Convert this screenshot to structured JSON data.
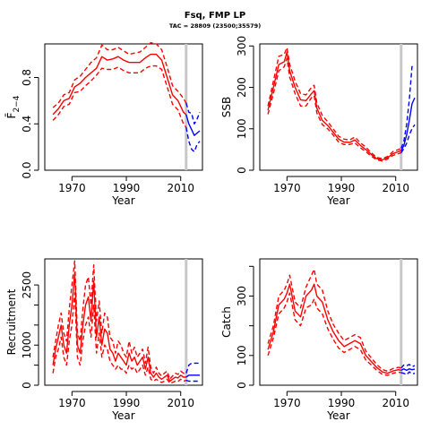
{
  "figure": {
    "title": "Fsq, FMP LP",
    "subtitle": "TAC = 28809 (23500;35579)"
  },
  "colors": {
    "history": "#ff0000",
    "projection": "#0000ff",
    "marker": "#c8c8c8",
    "axes": "#000000"
  },
  "chart_data": [
    {
      "id": "fbar",
      "type": "line",
      "title": "",
      "xlabel": "Year",
      "ylabel": "F̄",
      "ylabel_subscript": "2−4",
      "xlim": [
        1960,
        2018
      ],
      "ylim": [
        0,
        1.09
      ],
      "xticks": [
        1970,
        1990,
        2010
      ],
      "yticks": [
        0.0,
        0.4,
        0.8
      ],
      "ytick_labels": [
        "0.0",
        "0.4",
        "0.8"
      ],
      "vline_year": 2012,
      "hist": {
        "x": [
          1963,
          1965,
          1967,
          1969,
          1971,
          1973,
          1975,
          1977,
          1979,
          1981,
          1983,
          1985,
          1987,
          1989,
          1991,
          1993,
          1995,
          1997,
          1999,
          2001,
          2003,
          2005,
          2007,
          2009,
          2011,
          2012
        ],
        "y": [
          0.48,
          0.53,
          0.6,
          0.62,
          0.72,
          0.75,
          0.8,
          0.84,
          0.88,
          0.98,
          0.95,
          0.96,
          0.98,
          0.95,
          0.93,
          0.93,
          0.93,
          0.97,
          1.0,
          1.0,
          0.95,
          0.8,
          0.65,
          0.6,
          0.5,
          0.48
        ],
        "lo": [
          0.43,
          0.48,
          0.55,
          0.57,
          0.67,
          0.68,
          0.73,
          0.77,
          0.82,
          0.88,
          0.87,
          0.87,
          0.89,
          0.86,
          0.84,
          0.84,
          0.84,
          0.88,
          0.9,
          0.9,
          0.87,
          0.72,
          0.57,
          0.52,
          0.4,
          0.37
        ],
        "hi": [
          0.54,
          0.58,
          0.65,
          0.67,
          0.78,
          0.81,
          0.87,
          0.93,
          0.97,
          1.08,
          1.04,
          1.04,
          1.06,
          1.03,
          1.0,
          1.01,
          1.02,
          1.06,
          1.1,
          1.09,
          1.04,
          0.89,
          0.73,
          0.68,
          0.62,
          0.58
        ]
      },
      "proj": {
        "x": [
          2012,
          2013,
          2014,
          2015,
          2016,
          2017
        ],
        "y": [
          0.48,
          0.4,
          0.35,
          0.3,
          0.32,
          0.34
        ],
        "lo": [
          0.37,
          0.25,
          0.18,
          0.16,
          0.22,
          0.25
        ],
        "hi": [
          0.58,
          0.5,
          0.49,
          0.4,
          0.44,
          0.5
        ]
      }
    },
    {
      "id": "ssb",
      "type": "line",
      "title": "",
      "xlabel": "Year",
      "ylabel": "SSB",
      "xlim": [
        1960,
        2018
      ],
      "ylim": [
        0,
        305
      ],
      "xticks": [
        1970,
        1990,
        2010
      ],
      "yticks": [
        0,
        100,
        200,
        300
      ],
      "ytick_labels": [
        "0",
        "100",
        "200",
        "300"
      ],
      "vline_year": 2012,
      "hist": {
        "x": [
          1963,
          1965,
          1967,
          1969,
          1970,
          1971,
          1973,
          1975,
          1977,
          1979,
          1980,
          1981,
          1983,
          1985,
          1987,
          1989,
          1991,
          1993,
          1995,
          1997,
          1999,
          2001,
          2003,
          2005,
          2007,
          2009,
          2011,
          2012
        ],
        "y": [
          145,
          200,
          255,
          262,
          285,
          240,
          200,
          170,
          168,
          185,
          192,
          150,
          120,
          108,
          92,
          75,
          68,
          67,
          73,
          60,
          50,
          38,
          28,
          25,
          30,
          40,
          45,
          47
        ],
        "lo": [
          135,
          185,
          240,
          250,
          270,
          225,
          185,
          155,
          155,
          175,
          180,
          138,
          110,
          100,
          85,
          68,
          62,
          62,
          66,
          54,
          45,
          34,
          25,
          22,
          27,
          36,
          40,
          42
        ],
        "hi": [
          155,
          215,
          275,
          280,
          296,
          256,
          215,
          185,
          182,
          200,
          205,
          162,
          132,
          117,
          100,
          82,
          75,
          73,
          80,
          66,
          56,
          42,
          31,
          28,
          33,
          45,
          50,
          53
        ]
      },
      "proj": {
        "x": [
          2012,
          2013,
          2014,
          2015,
          2016,
          2017
        ],
        "y": [
          47,
          60,
          85,
          120,
          160,
          175
        ],
        "lo": [
          42,
          52,
          65,
          85,
          100,
          110
        ],
        "hi": [
          53,
          70,
          110,
          170,
          250,
          255
        ]
      }
    },
    {
      "id": "recruitment",
      "type": "line",
      "title": "",
      "xlabel": "Year",
      "ylabel": "Recruitment",
      "xlim": [
        1960,
        2018
      ],
      "ylim": [
        0,
        3150
      ],
      "xticks": [
        1970,
        1990,
        2010
      ],
      "yticks": [
        0,
        500,
        1000,
        1500,
        2000,
        2500
      ],
      "ytick_labels": [
        "0",
        "",
        "1000",
        "",
        "",
        "2500"
      ],
      "vline_year": 2012,
      "hist": {
        "x": [
          1963,
          1964,
          1965,
          1966,
          1967,
          1968,
          1969,
          1970,
          1971,
          1972,
          1973,
          1974,
          1975,
          1976,
          1977,
          1978,
          1979,
          1980,
          1981,
          1982,
          1983,
          1984,
          1985,
          1986,
          1987,
          1988,
          1989,
          1990,
          1991,
          1992,
          1993,
          1994,
          1995,
          1996,
          1997,
          1998,
          1999,
          2000,
          2001,
          2002,
          2003,
          2004,
          2005,
          2006,
          2007,
          2008,
          2009,
          2010,
          2011,
          2012
        ],
        "y": [
          500,
          900,
          1200,
          1500,
          1000,
          800,
          1500,
          2000,
          2800,
          1000,
          800,
          1500,
          2000,
          2200,
          1600,
          2600,
          1200,
          1700,
          1000,
          1400,
          1300,
          900,
          800,
          600,
          800,
          700,
          600,
          500,
          800,
          600,
          700,
          500,
          600,
          700,
          400,
          700,
          300,
          200,
          300,
          200,
          150,
          200,
          250,
          100,
          150,
          200,
          180,
          250,
          200,
          200
        ],
        "lo": [
          300,
          700,
          900,
          1200,
          700,
          500,
          1100,
          1500,
          2300,
          700,
          500,
          1100,
          1500,
          1700,
          1200,
          2000,
          800,
          1300,
          700,
          1000,
          900,
          600,
          500,
          400,
          500,
          400,
          400,
          300,
          500,
          400,
          450,
          300,
          400,
          500,
          250,
          450,
          150,
          100,
          150,
          100,
          70,
          100,
          150,
          50,
          70,
          100,
          90,
          150,
          100,
          120
        ],
        "hi": [
          700,
          1100,
          1500,
          1800,
          1300,
          1100,
          1900,
          2500,
          3100,
          1300,
          1100,
          1900,
          2500,
          2700,
          2000,
          3000,
          1600,
          2100,
          1300,
          1800,
          1700,
          1200,
          1100,
          800,
          1100,
          1000,
          800,
          700,
          1100,
          800,
          950,
          700,
          800,
          900,
          550,
          950,
          450,
          300,
          450,
          300,
          230,
          300,
          350,
          150,
          230,
          300,
          270,
          350,
          300,
          300
        ]
      },
      "proj": {
        "x": [
          2012,
          2013,
          2014,
          2015,
          2016,
          2017
        ],
        "y": [
          200,
          250,
          250,
          250,
          250,
          250
        ],
        "lo": [
          120,
          100,
          100,
          100,
          100,
          100
        ],
        "hi": [
          300,
          500,
          550,
          550,
          550,
          550
        ]
      }
    },
    {
      "id": "catch",
      "type": "line",
      "title": "",
      "xlabel": "Year",
      "ylabel": "Catch",
      "xlim": [
        1960,
        2018
      ],
      "ylim": [
        0,
        425
      ],
      "xticks": [
        1970,
        1990,
        2010
      ],
      "yticks": [
        0,
        100,
        200,
        300,
        400
      ],
      "ytick_labels": [
        "0",
        "100",
        "",
        "300",
        ""
      ],
      "vline_year": 2012,
      "hist": {
        "x": [
          1963,
          1965,
          1967,
          1969,
          1970,
          1971,
          1973,
          1975,
          1977,
          1979,
          1980,
          1981,
          1983,
          1985,
          1987,
          1989,
          1991,
          1993,
          1995,
          1997,
          1999,
          2001,
          2003,
          2005,
          2007,
          2009,
          2011,
          2012
        ],
        "y": [
          120,
          180,
          270,
          290,
          310,
          340,
          250,
          230,
          300,
          320,
          340,
          300,
          280,
          220,
          180,
          150,
          130,
          140,
          150,
          140,
          100,
          80,
          60,
          45,
          40,
          48,
          52,
          50
        ],
        "lo": [
          100,
          160,
          240,
          260,
          280,
          310,
          220,
          200,
          260,
          270,
          290,
          260,
          240,
          190,
          155,
          125,
          110,
          120,
          130,
          120,
          85,
          68,
          50,
          37,
          33,
          40,
          44,
          42
        ],
        "hi": [
          140,
          200,
          300,
          320,
          340,
          370,
          280,
          260,
          330,
          370,
          390,
          340,
          320,
          250,
          205,
          175,
          150,
          160,
          170,
          160,
          115,
          92,
          70,
          53,
          47,
          56,
          60,
          58
        ]
      },
      "proj": {
        "x": [
          2012,
          2013,
          2014,
          2015,
          2016,
          2017
        ],
        "y": [
          50,
          55,
          50,
          55,
          52,
          54
        ],
        "lo": [
          42,
          40,
          35,
          45,
          38,
          40
        ],
        "hi": [
          58,
          68,
          65,
          70,
          62,
          66
        ]
      }
    }
  ]
}
